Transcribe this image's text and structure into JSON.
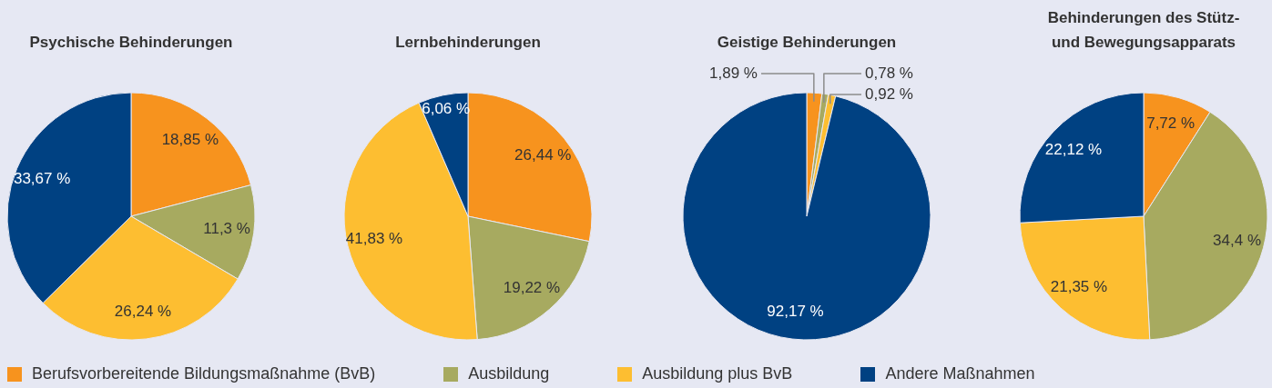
{
  "chart_data": [
    {
      "type": "pie",
      "title": "Psychische Behinderungen",
      "categories": [
        "Berufsvorbereitende Bildungsmaßnahme (BvB)",
        "Ausbildung",
        "Ausbildung plus BvB",
        "Andere Maßnahmen"
      ],
      "values": [
        18.85,
        11.3,
        26.24,
        33.67
      ],
      "colors": [
        "#f7931e",
        "#a7aa60",
        "#fdbe31",
        "#004182"
      ],
      "value_labels": [
        "18,85 %",
        "11,3 %",
        "26,24 %",
        "33,67 %"
      ],
      "legend": "bottom"
    },
    {
      "type": "pie",
      "title": "Lernbehinderungen",
      "categories": [
        null,
        null,
        null,
        null
      ],
      "values": [
        26.44,
        19.22,
        41.83,
        6.06
      ],
      "colors": [
        "#f7931e",
        "#a7aa60",
        "#fdbe31",
        "#004182"
      ],
      "value_labels": [
        "26,44 %",
        "19,22 %",
        "41,83 %",
        "6,06 %"
      ]
    },
    {
      "type": "pie",
      "title": "Geistige Behinderungen",
      "categories": [
        null,
        null,
        null,
        null
      ],
      "values": [
        1.89,
        0.78,
        0.92,
        92.17
      ],
      "colors": [
        "#f7931e",
        "#a7aa60",
        "#fdbe31",
        "#004182"
      ],
      "value_labels": [
        "1,89 %",
        "0,78 %",
        "0,92 %",
        "92,17 %"
      ]
    },
    {
      "type": "pie",
      "title": "Behinderungen des Stütz- und Bewegungsapparats",
      "categories": [
        null,
        null,
        null,
        null
      ],
      "values": [
        7.72,
        34.4,
        21.35,
        22.12
      ],
      "colors": [
        "#f7931e",
        "#a7aa60",
        "#fdbe31",
        "#004182"
      ],
      "value_labels": [
        "7,72 %",
        "34,4 %",
        "21,35 %",
        "22,12 %"
      ]
    }
  ]
}
